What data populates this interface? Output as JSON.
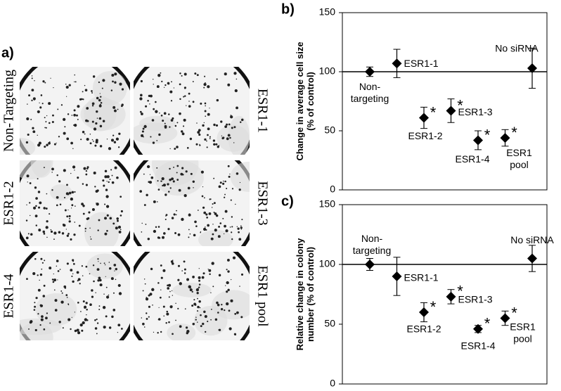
{
  "panel_a": {
    "label": "a)",
    "plates": [
      "Non-Targeting",
      "ESR1-1",
      "ESR1-2",
      "ESR1-3",
      "ESR1-4",
      "ESR1 pool"
    ]
  },
  "chart_data": [
    {
      "type": "scatter",
      "panel_label": "b)",
      "y_label": "Change in average cell size\n(% of control)",
      "categories": [
        "Non-\ntargeting",
        "ESR1-1",
        "ESR1-2",
        "ESR1-3",
        "ESR1-4",
        "ESR1\npool",
        "No siRNA"
      ],
      "values": [
        100,
        107,
        61,
        67,
        42,
        44,
        103
      ],
      "errors": [
        4,
        12,
        9,
        10,
        8,
        7,
        17
      ],
      "significant": [
        false,
        false,
        true,
        true,
        true,
        true,
        false
      ],
      "significance_marker": "*",
      "reference_line": 100,
      "color": "#000000",
      "ylim": [
        0,
        150
      ],
      "yticks": [
        0,
        50,
        100,
        150
      ]
    },
    {
      "type": "scatter",
      "panel_label": "c)",
      "y_label": "Relative change in colony\nnumber (% of control)",
      "categories": [
        "Non-\ntargeting",
        "ESR1-1",
        "ESR1-2",
        "ESR1-3",
        "ESR1-4",
        "ESR1\npool",
        "No siRNA"
      ],
      "values": [
        100,
        90,
        60,
        73,
        46,
        55,
        105
      ],
      "errors": [
        5,
        16,
        8,
        6,
        3,
        6,
        11
      ],
      "significant": [
        false,
        false,
        true,
        true,
        true,
        true,
        false
      ],
      "significance_marker": "*",
      "reference_line": 100,
      "color": "#000000",
      "ylim": [
        0,
        150
      ],
      "yticks": [
        0,
        50,
        100,
        150
      ]
    }
  ]
}
